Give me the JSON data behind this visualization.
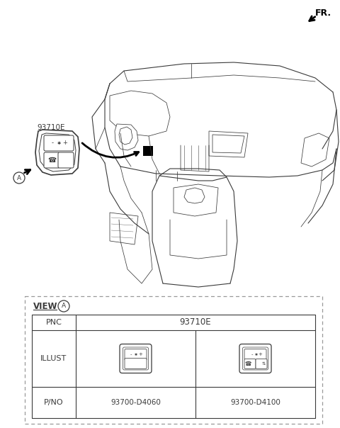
{
  "bg_color": "#ffffff",
  "line_color": "#3a3a3a",
  "thin_line": "#555555",
  "title_fr": "FR.",
  "label_93710E_callout": "93710E",
  "table_view_label": "VIEW",
  "table_pnc_label": "PNC",
  "table_pnc_value": "93710E",
  "table_illust_label": "ILLUST",
  "table_pno_label": "P/NO",
  "table_pno1": "93700-D4060",
  "table_pno2": "93700-D4100",
  "fig_width": 4.8,
  "fig_height": 6.04,
  "dpi": 100
}
